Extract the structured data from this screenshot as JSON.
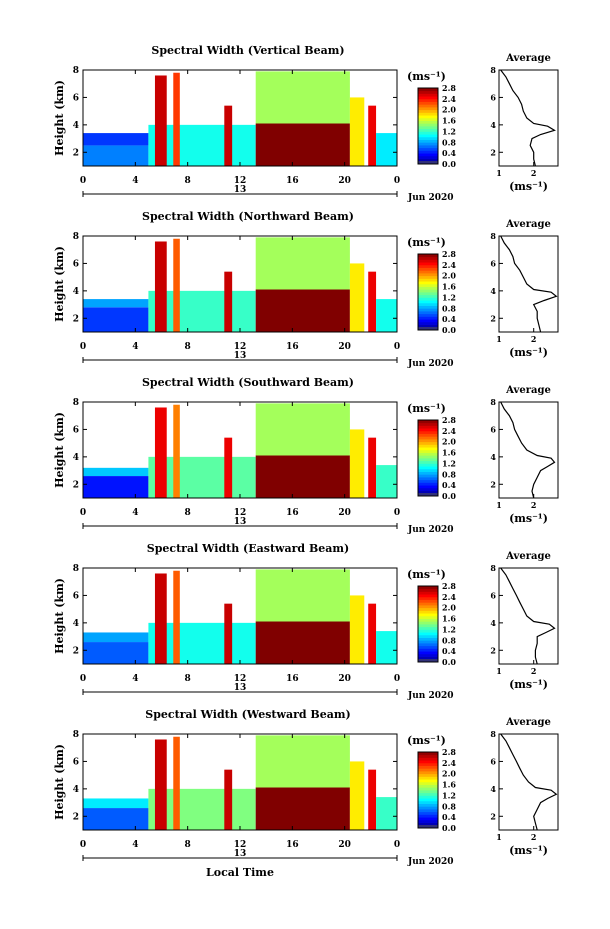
{
  "chart_data": [
    {
      "type": "heatmap",
      "title": "Spectral Width (Vertical Beam)",
      "ylabel": "Height (km)",
      "xlabel": "",
      "unit": "(ms⁻¹)",
      "date_label": "Jun 2020",
      "day_label": "13",
      "x_ticks": [
        "0",
        "4",
        "8",
        "12",
        "16",
        "20",
        "0"
      ],
      "y_ticks": [
        "2",
        "4",
        "6",
        "8"
      ],
      "xlim": [
        0,
        24
      ],
      "ylim": [
        1,
        8
      ],
      "colorbar": {
        "ticks": [
          "0.0",
          "0.4",
          "0.8",
          "1.2",
          "1.6",
          "2.0",
          "2.4",
          "2.8"
        ],
        "range": [
          0.0,
          2.8
        ]
      },
      "regions": [
        {
          "x": [
            0.0,
            5.0
          ],
          "y": [
            1.0,
            2.5
          ],
          "level": 0.7
        },
        {
          "x": [
            0.0,
            5.0
          ],
          "y": [
            2.5,
            3.4
          ],
          "level": 0.5
        },
        {
          "x": [
            5.0,
            13.2
          ],
          "y": [
            1.0,
            4.0
          ],
          "level": 1.1
        },
        {
          "x": [
            5.5,
            6.4
          ],
          "y": [
            1.0,
            7.6
          ],
          "level": 2.6
        },
        {
          "x": [
            6.9,
            7.4
          ],
          "y": [
            1.0,
            7.8
          ],
          "level": 2.3
        },
        {
          "x": [
            10.8,
            11.4
          ],
          "y": [
            1.0,
            5.4
          ],
          "level": 2.6
        },
        {
          "x": [
            13.2,
            20.4
          ],
          "y": [
            1.0,
            4.1
          ],
          "level": 2.85
        },
        {
          "x": [
            13.2,
            20.4
          ],
          "y": [
            4.1,
            7.9
          ],
          "level": 1.5
        },
        {
          "x": [
            20.4,
            21.5
          ],
          "y": [
            1.0,
            6.0
          ],
          "level": 1.8
        },
        {
          "x": [
            21.8,
            22.4
          ],
          "y": [
            1.0,
            5.4
          ],
          "level": 2.5
        },
        {
          "x": [
            22.4,
            24.0
          ],
          "y": [
            1.0,
            3.4
          ],
          "level": 1.0
        }
      ],
      "average": {
        "title": "Average",
        "xlabel": "(ms⁻¹)",
        "x_ticks": [
          "1",
          "2"
        ],
        "xlim": [
          1,
          2.7
        ],
        "y_ticks": [
          "2",
          "4",
          "6",
          "8"
        ],
        "height": [
          1.0,
          1.5,
          2.0,
          2.5,
          3.0,
          3.3,
          3.6,
          3.9,
          4.1,
          4.5,
          5.0,
          5.5,
          6.0,
          6.5,
          7.0,
          7.5,
          8.0
        ],
        "width": [
          2.05,
          2.0,
          2.0,
          1.9,
          1.95,
          2.2,
          2.6,
          2.4,
          2.0,
          1.8,
          1.7,
          1.65,
          1.55,
          1.4,
          1.3,
          1.2,
          1.05
        ]
      }
    },
    {
      "type": "heatmap",
      "title": "Spectral Width (Northward Beam)",
      "ylabel": "Height (km)",
      "xlabel": "",
      "unit": "(ms⁻¹)",
      "date_label": "Jun 2020",
      "day_label": "13",
      "x_ticks": [
        "0",
        "4",
        "8",
        "12",
        "16",
        "20",
        "0"
      ],
      "y_ticks": [
        "2",
        "4",
        "6",
        "8"
      ],
      "xlim": [
        0,
        24
      ],
      "ylim": [
        1,
        8
      ],
      "colorbar": {
        "ticks": [
          "0.0",
          "0.4",
          "0.8",
          "1.2",
          "1.6",
          "2.0",
          "2.4",
          "2.8"
        ],
        "range": [
          0.0,
          2.8
        ]
      },
      "regions": [
        {
          "x": [
            0.0,
            5.0
          ],
          "y": [
            1.0,
            2.8
          ],
          "level": 0.5
        },
        {
          "x": [
            0.0,
            5.0
          ],
          "y": [
            2.8,
            3.4
          ],
          "level": 0.8
        },
        {
          "x": [
            5.0,
            13.2
          ],
          "y": [
            1.0,
            4.0
          ],
          "level": 1.2
        },
        {
          "x": [
            5.5,
            6.4
          ],
          "y": [
            1.0,
            7.6
          ],
          "level": 2.6
        },
        {
          "x": [
            6.9,
            7.4
          ],
          "y": [
            1.0,
            7.8
          ],
          "level": 2.2
        },
        {
          "x": [
            10.8,
            11.4
          ],
          "y": [
            1.0,
            5.4
          ],
          "level": 2.6
        },
        {
          "x": [
            13.2,
            20.4
          ],
          "y": [
            1.0,
            4.1
          ],
          "level": 2.85
        },
        {
          "x": [
            13.2,
            20.4
          ],
          "y": [
            4.1,
            7.9
          ],
          "level": 1.5
        },
        {
          "x": [
            20.4,
            21.5
          ],
          "y": [
            1.0,
            6.0
          ],
          "level": 1.8
        },
        {
          "x": [
            21.8,
            22.4
          ],
          "y": [
            1.0,
            5.4
          ],
          "level": 2.5
        },
        {
          "x": [
            22.4,
            24.0
          ],
          "y": [
            1.0,
            3.4
          ],
          "level": 1.1
        }
      ],
      "average": {
        "title": "Average",
        "xlabel": "(ms⁻¹)",
        "x_ticks": [
          "1",
          "2"
        ],
        "xlim": [
          1,
          2.7
        ],
        "y_ticks": [
          "2",
          "4",
          "6",
          "8"
        ],
        "height": [
          1.0,
          1.5,
          2.0,
          2.5,
          3.0,
          3.3,
          3.6,
          3.9,
          4.1,
          4.5,
          5.0,
          5.5,
          6.0,
          6.5,
          7.0,
          7.5,
          8.0
        ],
        "width": [
          2.2,
          2.15,
          2.1,
          2.1,
          2.0,
          2.3,
          2.65,
          2.5,
          2.0,
          1.8,
          1.7,
          1.6,
          1.45,
          1.4,
          1.3,
          1.15,
          1.05
        ]
      }
    },
    {
      "type": "heatmap",
      "title": "Spectral Width (Southward Beam)",
      "ylabel": "Height (km)",
      "xlabel": "",
      "unit": "(ms⁻¹)",
      "date_label": "Jun 2020",
      "day_label": "13",
      "x_ticks": [
        "0",
        "4",
        "8",
        "12",
        "16",
        "20",
        "0"
      ],
      "y_ticks": [
        "2",
        "4",
        "6",
        "8"
      ],
      "xlim": [
        0,
        24
      ],
      "ylim": [
        1,
        8
      ],
      "colorbar": {
        "ticks": [
          "0.0",
          "0.4",
          "0.8",
          "1.2",
          "1.6",
          "2.0",
          "2.4",
          "2.8"
        ],
        "range": [
          0.0,
          2.8
        ]
      },
      "regions": [
        {
          "x": [
            0.0,
            5.0
          ],
          "y": [
            1.0,
            2.6
          ],
          "level": 0.4
        },
        {
          "x": [
            0.0,
            5.0
          ],
          "y": [
            2.6,
            3.2
          ],
          "level": 0.9
        },
        {
          "x": [
            5.0,
            13.2
          ],
          "y": [
            1.0,
            4.0
          ],
          "level": 1.3
        },
        {
          "x": [
            5.5,
            6.4
          ],
          "y": [
            1.0,
            7.6
          ],
          "level": 2.5
        },
        {
          "x": [
            6.9,
            7.4
          ],
          "y": [
            1.0,
            7.8
          ],
          "level": 2.1
        },
        {
          "x": [
            10.8,
            11.4
          ],
          "y": [
            1.0,
            5.4
          ],
          "level": 2.5
        },
        {
          "x": [
            13.2,
            20.4
          ],
          "y": [
            1.0,
            4.1
          ],
          "level": 2.85
        },
        {
          "x": [
            13.2,
            20.4
          ],
          "y": [
            4.1,
            7.9
          ],
          "level": 1.5
        },
        {
          "x": [
            20.4,
            21.5
          ],
          "y": [
            1.0,
            6.0
          ],
          "level": 1.8
        },
        {
          "x": [
            21.8,
            22.4
          ],
          "y": [
            1.0,
            5.4
          ],
          "level": 2.5
        },
        {
          "x": [
            22.4,
            24.0
          ],
          "y": [
            1.0,
            3.4
          ],
          "level": 1.2
        }
      ],
      "average": {
        "title": "Average",
        "xlabel": "(ms⁻¹)",
        "x_ticks": [
          "1",
          "2"
        ],
        "xlim": [
          1,
          2.7
        ],
        "y_ticks": [
          "2",
          "4",
          "6",
          "8"
        ],
        "height": [
          1.0,
          1.5,
          2.0,
          2.5,
          3.0,
          3.3,
          3.6,
          3.9,
          4.1,
          4.5,
          5.0,
          5.5,
          6.0,
          6.5,
          7.0,
          7.5,
          8.0
        ],
        "width": [
          2.0,
          1.95,
          2.0,
          2.1,
          2.2,
          2.4,
          2.6,
          2.5,
          2.1,
          1.8,
          1.65,
          1.55,
          1.45,
          1.4,
          1.3,
          1.15,
          1.05
        ]
      }
    },
    {
      "type": "heatmap",
      "title": "Spectral Width (Eastward Beam)",
      "ylabel": "Height (km)",
      "xlabel": "",
      "unit": "(ms⁻¹)",
      "date_label": "Jun 2020",
      "day_label": "13",
      "x_ticks": [
        "0",
        "4",
        "8",
        "12",
        "16",
        "20",
        "0"
      ],
      "y_ticks": [
        "2",
        "4",
        "6",
        "8"
      ],
      "xlim": [
        0,
        24
      ],
      "ylim": [
        1,
        8
      ],
      "colorbar": {
        "ticks": [
          "0.0",
          "0.4",
          "0.8",
          "1.2",
          "1.6",
          "2.0",
          "2.4",
          "2.8"
        ],
        "range": [
          0.0,
          2.8
        ]
      },
      "regions": [
        {
          "x": [
            0.0,
            5.0
          ],
          "y": [
            1.0,
            2.6
          ],
          "level": 0.6
        },
        {
          "x": [
            0.0,
            5.0
          ],
          "y": [
            2.6,
            3.3
          ],
          "level": 0.8
        },
        {
          "x": [
            5.0,
            13.2
          ],
          "y": [
            1.0,
            4.0
          ],
          "level": 1.1
        },
        {
          "x": [
            5.5,
            6.4
          ],
          "y": [
            1.0,
            7.6
          ],
          "level": 2.6
        },
        {
          "x": [
            6.9,
            7.4
          ],
          "y": [
            1.0,
            7.8
          ],
          "level": 2.2
        },
        {
          "x": [
            10.8,
            11.4
          ],
          "y": [
            1.0,
            5.4
          ],
          "level": 2.6
        },
        {
          "x": [
            13.2,
            20.4
          ],
          "y": [
            1.0,
            4.1
          ],
          "level": 2.85
        },
        {
          "x": [
            13.2,
            20.4
          ],
          "y": [
            4.1,
            7.9
          ],
          "level": 1.5
        },
        {
          "x": [
            20.4,
            21.5
          ],
          "y": [
            1.0,
            6.0
          ],
          "level": 1.8
        },
        {
          "x": [
            21.8,
            22.4
          ],
          "y": [
            1.0,
            5.4
          ],
          "level": 2.5
        },
        {
          "x": [
            22.4,
            24.0
          ],
          "y": [
            1.0,
            3.4
          ],
          "level": 1.1
        }
      ],
      "average": {
        "title": "Average",
        "xlabel": "(ms⁻¹)",
        "x_ticks": [
          "1",
          "2"
        ],
        "xlim": [
          1,
          2.7
        ],
        "y_ticks": [
          "2",
          "4",
          "6",
          "8"
        ],
        "height": [
          1.0,
          1.5,
          2.0,
          2.5,
          3.0,
          3.3,
          3.6,
          3.9,
          4.1,
          4.5,
          5.0,
          5.5,
          6.0,
          6.5,
          7.0,
          7.5,
          8.0
        ],
        "width": [
          2.1,
          2.05,
          2.05,
          2.1,
          2.1,
          2.35,
          2.6,
          2.45,
          2.0,
          1.8,
          1.7,
          1.6,
          1.5,
          1.4,
          1.3,
          1.2,
          1.05
        ]
      }
    },
    {
      "type": "heatmap",
      "title": "Spectral Width (Westward Beam)",
      "ylabel": "Height (km)",
      "xlabel": "Local Time",
      "unit": "(ms⁻¹)",
      "date_label": "Jun 2020",
      "day_label": "13",
      "x_ticks": [
        "0",
        "4",
        "8",
        "12",
        "16",
        "20",
        "0"
      ],
      "y_ticks": [
        "2",
        "4",
        "6",
        "8"
      ],
      "xlim": [
        0,
        24
      ],
      "ylim": [
        1,
        8
      ],
      "colorbar": {
        "ticks": [
          "0.0",
          "0.4",
          "0.8",
          "1.2",
          "1.6",
          "2.0",
          "2.4",
          "2.8"
        ],
        "range": [
          0.0,
          2.8
        ]
      },
      "regions": [
        {
          "x": [
            0.0,
            5.0
          ],
          "y": [
            1.0,
            2.6
          ],
          "level": 0.6
        },
        {
          "x": [
            0.0,
            5.0
          ],
          "y": [
            2.6,
            3.3
          ],
          "level": 1.0
        },
        {
          "x": [
            5.0,
            13.2
          ],
          "y": [
            1.0,
            4.0
          ],
          "level": 1.4
        },
        {
          "x": [
            5.5,
            6.4
          ],
          "y": [
            1.0,
            7.6
          ],
          "level": 2.6
        },
        {
          "x": [
            6.9,
            7.4
          ],
          "y": [
            1.0,
            7.8
          ],
          "level": 2.2
        },
        {
          "x": [
            10.8,
            11.4
          ],
          "y": [
            1.0,
            5.4
          ],
          "level": 2.6
        },
        {
          "x": [
            13.2,
            20.4
          ],
          "y": [
            1.0,
            4.1
          ],
          "level": 2.85
        },
        {
          "x": [
            13.2,
            20.4
          ],
          "y": [
            4.1,
            7.9
          ],
          "level": 1.5
        },
        {
          "x": [
            20.4,
            21.5
          ],
          "y": [
            1.0,
            6.0
          ],
          "level": 1.8
        },
        {
          "x": [
            21.8,
            22.4
          ],
          "y": [
            1.0,
            5.4
          ],
          "level": 2.5
        },
        {
          "x": [
            22.4,
            24.0
          ],
          "y": [
            1.0,
            3.4
          ],
          "level": 1.2
        }
      ],
      "average": {
        "title": "Average",
        "xlabel": "(ms⁻¹)",
        "x_ticks": [
          "1",
          "2"
        ],
        "xlim": [
          1,
          2.7
        ],
        "y_ticks": [
          "2",
          "4",
          "6",
          "8"
        ],
        "height": [
          1.0,
          1.5,
          2.0,
          2.5,
          3.0,
          3.3,
          3.6,
          3.9,
          4.1,
          4.5,
          5.0,
          5.5,
          6.0,
          6.5,
          7.0,
          7.5,
          8.0
        ],
        "width": [
          2.1,
          2.05,
          2.0,
          2.1,
          2.2,
          2.4,
          2.65,
          2.5,
          2.05,
          1.85,
          1.7,
          1.6,
          1.5,
          1.4,
          1.3,
          1.2,
          1.05
        ]
      }
    }
  ]
}
